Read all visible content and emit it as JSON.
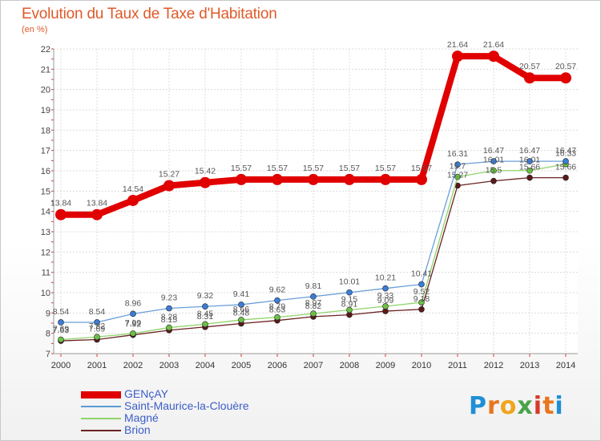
{
  "title": "Evolution du Taux de Taxe d'Habitation",
  "subtitle": "(en %)",
  "logo": {
    "text": "Proxiti",
    "letters": [
      "P",
      "r",
      "o",
      "x",
      "i",
      "t",
      "i"
    ],
    "colors": [
      "#1f8fd6",
      "#e8761e",
      "#f0a51e",
      "#4aa34a",
      "#d63b2a",
      "#e8761e",
      "#1f8fd6"
    ]
  },
  "chart_data": {
    "type": "line",
    "categories": [
      "2000",
      "2001",
      "2002",
      "2003",
      "2004",
      "2005",
      "2006",
      "2007",
      "2008",
      "2009",
      "2010",
      "2011",
      "2012",
      "2013",
      "2014"
    ],
    "ylim": [
      7,
      22
    ],
    "yticks": [
      "7",
      "8",
      "9",
      "10",
      "11",
      "12",
      "13",
      "14",
      "15",
      "16",
      "17",
      "18",
      "19",
      "20",
      "21",
      "22"
    ],
    "grid": true,
    "legend_position": "bottom-left",
    "series": [
      {
        "name": "GENçAY",
        "color": "#e00000",
        "values": [
          13.84,
          13.84,
          14.54,
          15.27,
          15.42,
          15.57,
          15.57,
          15.57,
          15.57,
          15.57,
          15.57,
          21.64,
          21.64,
          20.57,
          20.57
        ],
        "labels": [
          "13.84",
          "13.84",
          "14.54",
          "15.27",
          "15.42",
          "15.57",
          "15.57",
          "15.57",
          "15.57",
          "15.57",
          "15.57",
          "21.64",
          "21.64",
          "20.57",
          "20.57"
        ]
      },
      {
        "name": "Saint-Maurice-la-Clouère",
        "color": "#5b9bd5",
        "values": [
          8.54,
          8.54,
          8.96,
          9.23,
          9.32,
          9.41,
          9.62,
          9.81,
          10.01,
          10.21,
          10.41,
          16.31,
          16.47,
          16.47,
          16.47
        ],
        "labels": [
          "8.54",
          "8.54",
          "8.96",
          "9.23",
          "9.32",
          "9.41",
          "9.62",
          "9.81",
          "10.01",
          "10.21",
          "10.41",
          "16.31",
          "16.47",
          "16.47",
          "16.47"
        ]
      },
      {
        "name": "Magné",
        "color": "#8fd468",
        "values": [
          7.69,
          7.82,
          7.99,
          8.28,
          8.45,
          8.66,
          8.79,
          8.97,
          9.15,
          9.33,
          9.52,
          15.7,
          16.01,
          16.01,
          16.33
        ],
        "labels": [
          "7.69",
          "7.82",
          "7.99",
          "8.28",
          "8.45",
          "8.66",
          "8.79",
          "8.97",
          "9.15",
          "9.33",
          "9.52",
          "15.7",
          "16.01",
          "16.01",
          "16.33"
        ]
      },
      {
        "name": "Brion",
        "color": "#6a2222",
        "values": [
          7.63,
          7.69,
          7.92,
          8.15,
          8.31,
          8.48,
          8.63,
          8.82,
          8.91,
          9.09,
          9.18,
          15.27,
          15.5,
          15.66,
          15.66
        ],
        "labels": [
          "7.63",
          "7.69",
          "7.92",
          "8.15",
          "8.31",
          "8.48",
          "8.63",
          "8.82",
          "8.91",
          "9.09",
          "9.18",
          "15.27",
          "15.5",
          "15.66",
          "15.66"
        ]
      }
    ]
  }
}
